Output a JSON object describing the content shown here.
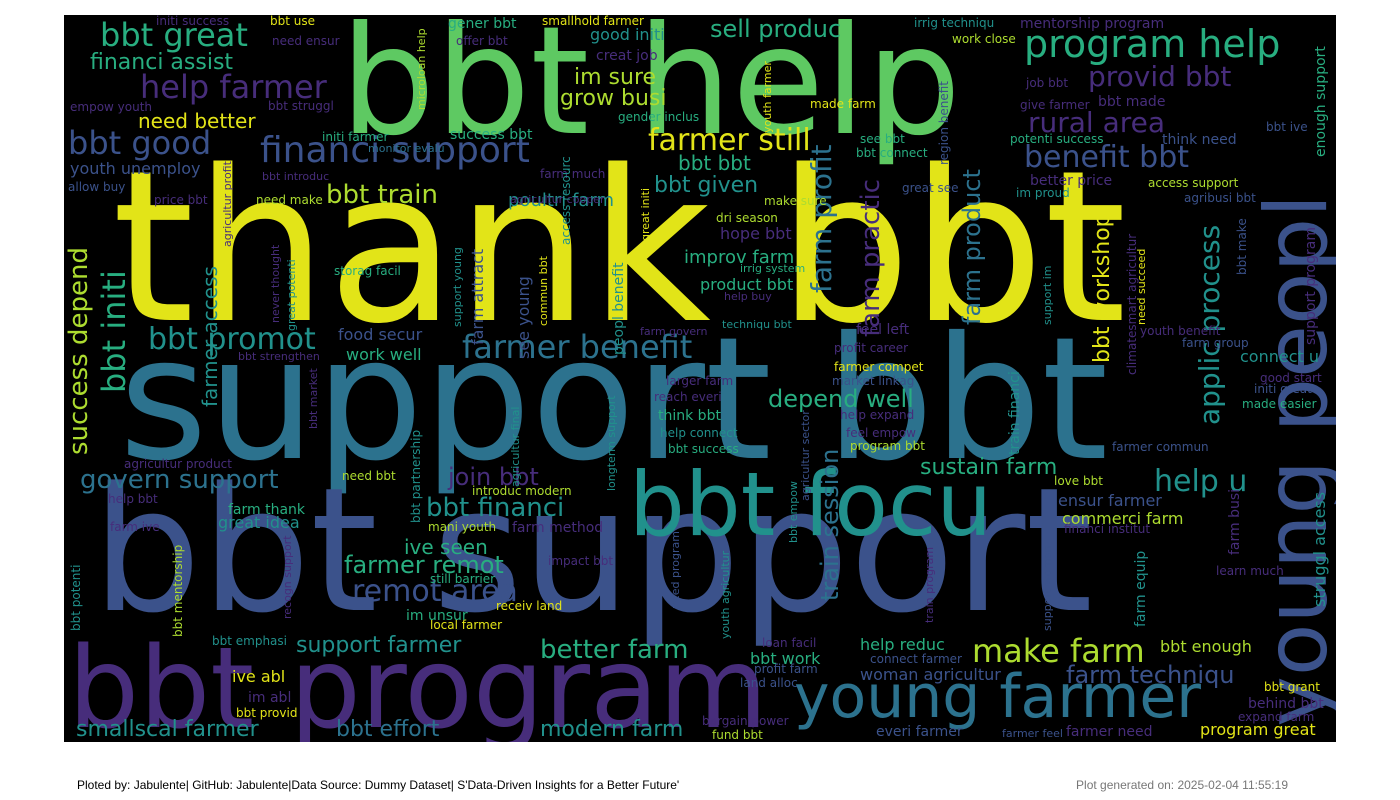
{
  "footer": {
    "credits": "Ploted by: Jabulente| GitHub: Jabulente|Data Source: Dummy Dataset| S'Data-Driven Insights for a Better Future'",
    "generated": "Plot generated on: 2025-02-04 11:55:19"
  },
  "palette": {
    "yellow": "#e2e418",
    "lime": "#addc30",
    "green": "#5ec962",
    "teal_green": "#28ae80",
    "teal": "#21918c",
    "steel": "#2c728e",
    "blue": "#3b528b",
    "indigo": "#472d7b",
    "purple": "#440154",
    "background": "#000000"
  },
  "words": [
    "thank bbt",
    "support bbt",
    "bbt support",
    "bbt help",
    "bbt program",
    "young peopl",
    "bbt focu",
    "young farmer",
    "program help",
    "financi support",
    "help farmer",
    "bbt great",
    "financi assist",
    "sell produc",
    "provid bbt",
    "rural area",
    "benefit bbt",
    "farmer benefit",
    "farmer still",
    "bbt good",
    "bbt initi",
    "success depend",
    "bbt promot",
    "govern support",
    "bbt train",
    "farm profit",
    "farm practic",
    "farm product",
    "applic process",
    "bbt workshop",
    "help u",
    "sustain farm",
    "depend well",
    "remot area",
    "farmer remot",
    "support farmer",
    "better farm",
    "make farm",
    "farm techniqu",
    "modern farm",
    "bbt effort",
    "smallscal farmer",
    "bbt financi",
    "join bbt",
    "train session",
    "ive seen",
    "need better",
    "im sure",
    "grow busi",
    "good initi",
    "bbt bbt",
    "bbt given",
    "youth unemploy",
    "farmer access",
    "improv farm",
    "product bbt",
    "hope bbt",
    "poultri farm",
    "farm attract",
    "see young",
    "work well",
    "food secur",
    "commerci farm",
    "ensur farmer",
    "bbt enough",
    "help reduc",
    "woman agricultur",
    "bbt work",
    "ive abl",
    "im abl",
    "bbt provid",
    "program great",
    "behind bbt",
    "expand farm",
    "bbt grant",
    "everi farmer",
    "farmer need",
    "farmer feel",
    "fund bbt",
    "bargain power",
    "receiv land",
    "local farmer",
    "im unsur",
    "still barrier",
    "impact bbt",
    "mani youth",
    "farm method",
    "introduc modern",
    "bbt mentorship",
    "bbt potenti",
    "great idea",
    "farm thank",
    "farm ive",
    "help bbt",
    "need bbt",
    "agricultur product",
    "bbt partnership",
    "think bbt",
    "help connect",
    "bbt success",
    "reach everi",
    "larger farm",
    "program bbt",
    "feel empow",
    "help expand",
    "farmer compet",
    "market linkag",
    "profit career",
    "feel left",
    "connect u",
    "farm group",
    "youth benefit",
    "initi great",
    "made easier",
    "good start",
    "farmer commun",
    "love bbt",
    "financi institut",
    "support program",
    "struggl access",
    "enough support",
    "irrig techniqu",
    "mentorship program",
    "work close",
    "job bbt",
    "give farmer",
    "bbt made",
    "bbt ive",
    "think need",
    "potenti success",
    "bbt connect",
    "see bbt",
    "region benefit",
    "im proud",
    "better price",
    "access support",
    "agribusi bbt",
    "great see",
    "made farm",
    "youth farmer",
    "microloan help",
    "gender inclus",
    "success bbt",
    "initi farmer",
    "monitor evalu",
    "bbt introduc",
    "allow buy",
    "price bbt",
    "need make",
    "agricultur cooper",
    "farm much",
    "make sure",
    "dri season",
    "irrig system",
    "help buy",
    "techniqu bbt",
    "farm govern",
    "access resourc",
    "great initi",
    "peopl benefit",
    "commun bbt",
    "support young",
    "storag facil",
    "great potenti",
    "never thought",
    "bbt strengthen",
    "bbt market",
    "agricultur profit",
    "initi success",
    "bbt use",
    "need ensur",
    "offer bbt",
    "gener bbt",
    "smallhold farmer",
    "creat job",
    "empow youth",
    "bbt struggl",
    "climatesmart agricultur",
    "need succeed",
    "support im",
    "bbt make",
    "train financi",
    "longterm support",
    "agricultur final",
    "agricultur sector",
    "bbt empow",
    "youth agricultur",
    "need program",
    "loan facil",
    "profit farm",
    "land alloc",
    "connect farmer",
    "train program",
    "support woman",
    "farm equip",
    "farm busi",
    "learn much",
    "recogn support",
    "bbt emphasi"
  ]
}
